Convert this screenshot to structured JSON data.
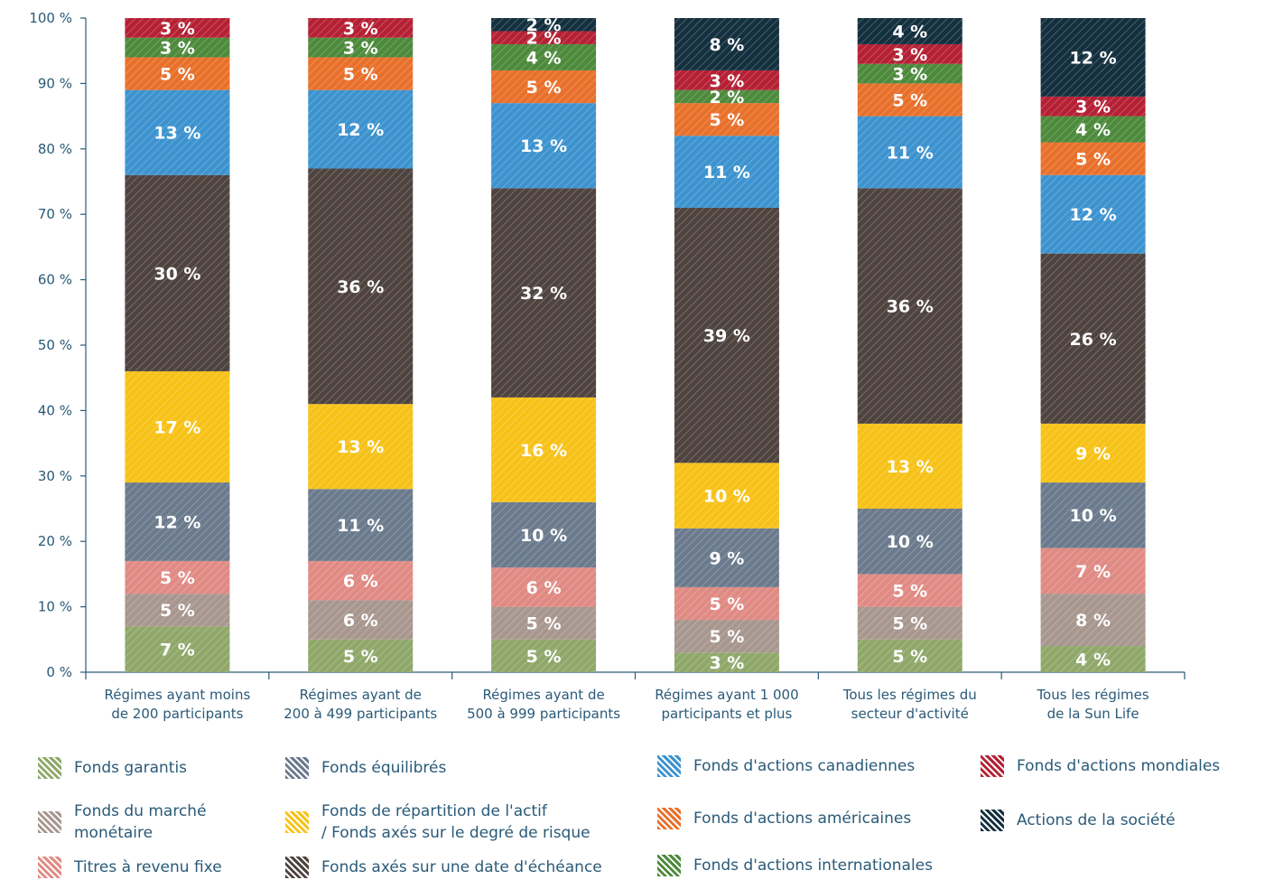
{
  "chart_data": {
    "type": "bar",
    "stacked": true,
    "y_tick_labels": [
      "0 %",
      "10 %",
      "20 %",
      "30 %",
      "40 %",
      "50 %",
      "60 %",
      "70 %",
      "80 %",
      "90 %",
      "100 %"
    ],
    "ylim": [
      0,
      100
    ],
    "categories": [
      "Régimes ayant moins\nde 200 participants",
      "Régimes ayant de\n200 à 499 participants",
      "Régimes ayant de\n500 à 999 participants",
      "Régimes ayant 1 000\nparticipants et plus",
      "Tous les régimes du\nsecteur d'activité",
      "Tous les régimes\nde la Sun Life"
    ],
    "series": [
      {
        "name": "Fonds garantis",
        "color": "#8fa86a",
        "values": [
          7,
          5,
          5,
          3,
          5,
          4
        ]
      },
      {
        "name": "Fonds du marché monétaire",
        "color": "#a8978f",
        "values": [
          5,
          6,
          5,
          5,
          5,
          8
        ]
      },
      {
        "name": "Titres à revenu fixe",
        "color": "#e08a84",
        "values": [
          5,
          6,
          6,
          5,
          5,
          7
        ]
      },
      {
        "name": "Fonds équilibrés",
        "color": "#6b7b8d",
        "values": [
          12,
          11,
          10,
          9,
          10,
          10
        ]
      },
      {
        "name": "Fonds de répartition de l'actif / Fonds axés sur le degré de risque",
        "color": "#f7c218",
        "values": [
          17,
          13,
          16,
          10,
          13,
          9
        ]
      },
      {
        "name": "Fonds axés sur une date d'échéance",
        "color": "#4e433f",
        "values": [
          30,
          36,
          32,
          39,
          36,
          26
        ]
      },
      {
        "name": "Fonds d'actions canadiennes",
        "color": "#3d93cf",
        "values": [
          13,
          12,
          13,
          11,
          11,
          12
        ]
      },
      {
        "name": "Fonds d'actions américaines",
        "color": "#e8702b",
        "values": [
          5,
          5,
          5,
          5,
          5,
          5
        ]
      },
      {
        "name": "Fonds d'actions internationales",
        "color": "#4d8a3c",
        "values": [
          3,
          3,
          4,
          2,
          3,
          4
        ]
      },
      {
        "name": "Fonds d'actions mondiales",
        "color": "#b52034",
        "values": [
          3,
          3,
          2,
          3,
          3,
          3
        ]
      },
      {
        "name": "Actions de la société",
        "color": "#14303f",
        "values": [
          0,
          0,
          2,
          8,
          4,
          12
        ]
      }
    ],
    "value_labels": [
      [
        "7 %",
        "5 %",
        "5 %",
        "12 %",
        "17 %",
        "30 %",
        "13 %",
        "5 %",
        "3 %",
        "3 %",
        ""
      ],
      [
        "5 %",
        "6 %",
        "6 %",
        "11 %",
        "13 %",
        "36 %",
        "12 %",
        "5 %",
        "3 %",
        "3 %",
        ""
      ],
      [
        "5 %",
        "5 %",
        "6 %",
        "10 %",
        "16 %",
        "32 %",
        "13 %",
        "5 %",
        "4 %",
        "2 %",
        "2 %"
      ],
      [
        "3 %",
        "5 %",
        "5 %",
        "9 %",
        "10 %",
        "39 %",
        "11 %",
        "5 %",
        "2 %",
        "3 %",
        "8 %"
      ],
      [
        "5 %",
        "5 %",
        "5 %",
        "10 %",
        "13 %",
        "36 %",
        "11 %",
        "5 %",
        "3 %",
        "3 %",
        "4 %"
      ],
      [
        "4 %",
        "8 %",
        "7 %",
        "10 %",
        "9 %",
        "26 %",
        "12 %",
        "5 %",
        "4 %",
        "3 %",
        "12 %"
      ]
    ],
    "legend": [
      {
        "label": "Fonds garantis",
        "color": "#8fa86a"
      },
      {
        "label": "Fonds équilibrés",
        "color": "#6b7b8d"
      },
      {
        "label": "Fonds d'actions canadiennes",
        "color": "#3d93cf"
      },
      {
        "label": "Fonds d'actions mondiales",
        "color": "#b52034"
      },
      {
        "label": "Fonds du marché\nmonétaire",
        "color": "#a8978f"
      },
      {
        "label": "Fonds de répartition de l'actif\n/ Fonds axés sur le degré de risque",
        "color": "#f7c218"
      },
      {
        "label": "Fonds d'actions américaines",
        "color": "#e8702b"
      },
      {
        "label": "Actions de la société",
        "color": "#14303f"
      },
      {
        "label": "Titres à revenu fixe",
        "color": "#e08a84"
      },
      {
        "label": "Fonds axés sur une date d'échéance",
        "color": "#4e433f"
      },
      {
        "label": "Fonds d'actions internationales",
        "color": "#4d8a3c"
      }
    ],
    "legend_placement": "bottom",
    "grid": false
  }
}
